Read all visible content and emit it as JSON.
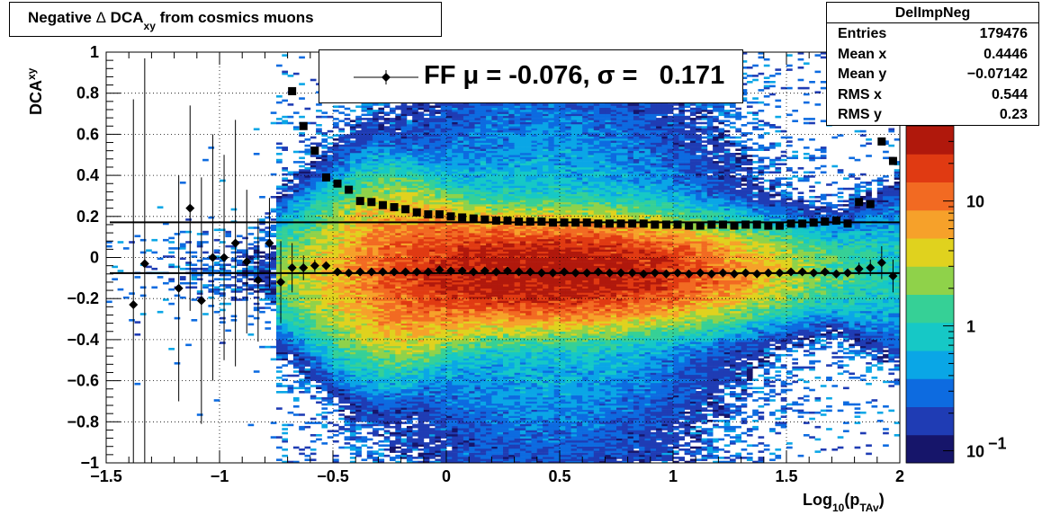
{
  "chart_data": {
    "type": "heatmap",
    "histogram_name": "DelImpNeg",
    "title_parts": {
      "prefix": "Negative ",
      "delta": "Δ",
      "dca": " DCA",
      "subscript": "xy",
      "suffix": " from cosmics muons"
    },
    "xlabel": {
      "base": "Log",
      "sub1": "10",
      "mid": "(p",
      "sub2": "TAv",
      "end": ")"
    },
    "ylabel": {
      "base": "DCA",
      "sub": "xy"
    },
    "xlim": [
      -1.5,
      2
    ],
    "ylim": [
      -1,
      1
    ],
    "x_ticks": [
      {
        "v": -1.5,
        "label": "−1.5"
      },
      {
        "v": -1,
        "label": "−1"
      },
      {
        "v": -0.5,
        "label": "−0.5"
      },
      {
        "v": 0,
        "label": "0"
      },
      {
        "v": 0.5,
        "label": "0.5"
      },
      {
        "v": 1,
        "label": "1"
      },
      {
        "v": 1.5,
        "label": "1.5"
      },
      {
        "v": 2,
        "label": "2"
      }
    ],
    "y_ticks": [
      {
        "v": -1,
        "label": "−1"
      },
      {
        "v": -0.8,
        "label": "−0.8"
      },
      {
        "v": -0.6,
        "label": "−0.6"
      },
      {
        "v": -0.4,
        "label": "−0.4"
      },
      {
        "v": -0.2,
        "label": "−0.2"
      },
      {
        "v": 0,
        "label": "0"
      },
      {
        "v": 0.2,
        "label": "0.2"
      },
      {
        "v": 0.4,
        "label": "0.4"
      },
      {
        "v": 0.6,
        "label": "0.6"
      },
      {
        "v": 0.8,
        "label": "0.8"
      },
      {
        "v": 1,
        "label": "1"
      }
    ],
    "z_scale": "log",
    "z_range": [
      0.08,
      40
    ],
    "z_ticks": [
      {
        "v": 10,
        "label": "10"
      },
      {
        "v": 1,
        "label": "1"
      },
      {
        "v": 0.1,
        "label": "10",
        "exp": "−1"
      }
    ],
    "grid": true,
    "stats": [
      {
        "label": "Entries",
        "value": "179476"
      },
      {
        "label": "Mean x",
        "value": "0.4446"
      },
      {
        "label": "Mean y",
        "value": "−0.07142"
      },
      {
        "label": "RMS x",
        "value": "0.544"
      },
      {
        "label": "RMS y",
        "value": "0.23"
      }
    ],
    "legend": {
      "text": "FF μ = -0.076, σ =   0.171",
      "position": "top-center"
    },
    "mean_line": -0.076,
    "sigma_line": 0.171,
    "mean_points": [
      {
        "x": -1.38,
        "y": -0.23,
        "err": 1.0
      },
      {
        "x": -1.33,
        "y": -0.03,
        "err": 1.0
      },
      {
        "x": -1.18,
        "y": -0.15,
        "err": 0.55
      },
      {
        "x": -1.13,
        "y": 0.24,
        "err": 0.5
      },
      {
        "x": -1.08,
        "y": -0.21,
        "err": 0.6
      },
      {
        "x": -1.03,
        "y": 0.0,
        "err": 0.6
      },
      {
        "x": -0.98,
        "y": 0.0,
        "err": 0.5
      },
      {
        "x": -0.93,
        "y": 0.07,
        "err": 0.6
      },
      {
        "x": -0.88,
        "y": -0.02,
        "err": 0.35
      },
      {
        "x": -0.83,
        "y": -0.11,
        "err": 0.3
      },
      {
        "x": -0.78,
        "y": 0.07,
        "err": 0.22
      },
      {
        "x": -0.73,
        "y": -0.12,
        "err": 0.2
      },
      {
        "x": -0.68,
        "y": -0.05,
        "err": 0.12
      },
      {
        "x": -0.63,
        "y": -0.05,
        "err": 0.06
      },
      {
        "x": -0.58,
        "y": -0.04,
        "err": 0.03
      },
      {
        "x": -0.53,
        "y": -0.04,
        "err": 0.02
      },
      {
        "x": -0.48,
        "y": -0.07,
        "err": 0.01
      },
      {
        "x": -0.43,
        "y": -0.075,
        "err": 0.01
      },
      {
        "x": -0.38,
        "y": -0.07,
        "err": 0.01
      },
      {
        "x": -0.33,
        "y": -0.07,
        "err": 0
      },
      {
        "x": -0.28,
        "y": -0.07,
        "err": 0
      },
      {
        "x": -0.23,
        "y": -0.07,
        "err": 0
      },
      {
        "x": -0.18,
        "y": -0.07,
        "err": 0
      },
      {
        "x": -0.13,
        "y": -0.07,
        "err": 0
      },
      {
        "x": -0.08,
        "y": -0.07,
        "err": 0
      },
      {
        "x": -0.03,
        "y": -0.06,
        "err": 0
      },
      {
        "x": 0.02,
        "y": -0.065,
        "err": 0
      },
      {
        "x": 0.07,
        "y": -0.065,
        "err": 0
      },
      {
        "x": 0.12,
        "y": -0.07,
        "err": 0
      },
      {
        "x": 0.17,
        "y": -0.065,
        "err": 0
      },
      {
        "x": 0.22,
        "y": -0.07,
        "err": 0
      },
      {
        "x": 0.27,
        "y": -0.065,
        "err": 0
      },
      {
        "x": 0.32,
        "y": -0.07,
        "err": 0
      },
      {
        "x": 0.37,
        "y": -0.07,
        "err": 0
      },
      {
        "x": 0.42,
        "y": -0.075,
        "err": 0
      },
      {
        "x": 0.47,
        "y": -0.075,
        "err": 0
      },
      {
        "x": 0.52,
        "y": -0.07,
        "err": 0
      },
      {
        "x": 0.57,
        "y": -0.075,
        "err": 0
      },
      {
        "x": 0.62,
        "y": -0.075,
        "err": 0
      },
      {
        "x": 0.67,
        "y": -0.07,
        "err": 0
      },
      {
        "x": 0.72,
        "y": -0.075,
        "err": 0
      },
      {
        "x": 0.77,
        "y": -0.075,
        "err": 0
      },
      {
        "x": 0.82,
        "y": -0.075,
        "err": 0
      },
      {
        "x": 0.87,
        "y": -0.08,
        "err": 0
      },
      {
        "x": 0.92,
        "y": -0.075,
        "err": 0
      },
      {
        "x": 0.97,
        "y": -0.08,
        "err": 0
      },
      {
        "x": 1.02,
        "y": -0.075,
        "err": 0
      },
      {
        "x": 1.07,
        "y": -0.08,
        "err": 0
      },
      {
        "x": 1.12,
        "y": -0.075,
        "err": 0
      },
      {
        "x": 1.17,
        "y": -0.08,
        "err": 0
      },
      {
        "x": 1.22,
        "y": -0.075,
        "err": 0
      },
      {
        "x": 1.27,
        "y": -0.08,
        "err": 0
      },
      {
        "x": 1.32,
        "y": -0.075,
        "err": 0
      },
      {
        "x": 1.37,
        "y": -0.08,
        "err": 0
      },
      {
        "x": 1.42,
        "y": -0.075,
        "err": 0
      },
      {
        "x": 1.47,
        "y": -0.075,
        "err": 0.01
      },
      {
        "x": 1.52,
        "y": -0.07,
        "err": 0.01
      },
      {
        "x": 1.57,
        "y": -0.07,
        "err": 0.01
      },
      {
        "x": 1.62,
        "y": -0.075,
        "err": 0.01
      },
      {
        "x": 1.67,
        "y": -0.07,
        "err": 0.01
      },
      {
        "x": 1.72,
        "y": -0.08,
        "err": 0.01
      },
      {
        "x": 1.77,
        "y": -0.075,
        "err": 0.02
      },
      {
        "x": 1.82,
        "y": -0.055,
        "err": 0.03
      },
      {
        "x": 1.87,
        "y": -0.05,
        "err": 0.04
      },
      {
        "x": 1.92,
        "y": -0.025,
        "err": 0.08
      },
      {
        "x": 1.97,
        "y": -0.09,
        "err": 0.08
      }
    ],
    "sigma_points": [
      {
        "x": -0.68,
        "y": 0.81
      },
      {
        "x": -0.63,
        "y": 0.64
      },
      {
        "x": -0.58,
        "y": 0.52
      },
      {
        "x": -0.53,
        "y": 0.39
      },
      {
        "x": -0.48,
        "y": 0.36
      },
      {
        "x": -0.43,
        "y": 0.33
      },
      {
        "x": -0.38,
        "y": 0.275
      },
      {
        "x": -0.33,
        "y": 0.27
      },
      {
        "x": -0.28,
        "y": 0.255
      },
      {
        "x": -0.23,
        "y": 0.245
      },
      {
        "x": -0.18,
        "y": 0.235
      },
      {
        "x": -0.13,
        "y": 0.22
      },
      {
        "x": -0.08,
        "y": 0.21
      },
      {
        "x": -0.03,
        "y": 0.21
      },
      {
        "x": 0.02,
        "y": 0.2
      },
      {
        "x": 0.07,
        "y": 0.195
      },
      {
        "x": 0.12,
        "y": 0.19
      },
      {
        "x": 0.17,
        "y": 0.185
      },
      {
        "x": 0.22,
        "y": 0.18
      },
      {
        "x": 0.27,
        "y": 0.18
      },
      {
        "x": 0.32,
        "y": 0.175
      },
      {
        "x": 0.37,
        "y": 0.175
      },
      {
        "x": 0.42,
        "y": 0.175
      },
      {
        "x": 0.47,
        "y": 0.17
      },
      {
        "x": 0.52,
        "y": 0.17
      },
      {
        "x": 0.57,
        "y": 0.17
      },
      {
        "x": 0.62,
        "y": 0.17
      },
      {
        "x": 0.67,
        "y": 0.165
      },
      {
        "x": 0.72,
        "y": 0.165
      },
      {
        "x": 0.77,
        "y": 0.165
      },
      {
        "x": 0.82,
        "y": 0.165
      },
      {
        "x": 0.87,
        "y": 0.165
      },
      {
        "x": 0.92,
        "y": 0.16
      },
      {
        "x": 0.97,
        "y": 0.16
      },
      {
        "x": 1.02,
        "y": 0.16
      },
      {
        "x": 1.07,
        "y": 0.155
      },
      {
        "x": 1.12,
        "y": 0.155
      },
      {
        "x": 1.17,
        "y": 0.16
      },
      {
        "x": 1.22,
        "y": 0.16
      },
      {
        "x": 1.27,
        "y": 0.155
      },
      {
        "x": 1.32,
        "y": 0.16
      },
      {
        "x": 1.37,
        "y": 0.16
      },
      {
        "x": 1.42,
        "y": 0.155
      },
      {
        "x": 1.47,
        "y": 0.155
      },
      {
        "x": 1.52,
        "y": 0.165
      },
      {
        "x": 1.57,
        "y": 0.165
      },
      {
        "x": 1.62,
        "y": 0.17
      },
      {
        "x": 1.67,
        "y": 0.175
      },
      {
        "x": 1.72,
        "y": 0.18
      },
      {
        "x": 1.77,
        "y": 0.165
      },
      {
        "x": 1.82,
        "y": 0.27
      },
      {
        "x": 1.87,
        "y": 0.26
      },
      {
        "x": 1.92,
        "y": 0.565
      },
      {
        "x": 1.97,
        "y": 0.47
      }
    ],
    "colors": {
      "mean_line": "#000000",
      "markers": "#000000",
      "palette": [
        "#16156a",
        "#1f3cb4",
        "#0d6be0",
        "#0aa6e6",
        "#16c8c6",
        "#36d096",
        "#8fd24a",
        "#e0d21e",
        "#f6a12a",
        "#f26a22",
        "#e03a12",
        "#b0180c"
      ]
    }
  }
}
